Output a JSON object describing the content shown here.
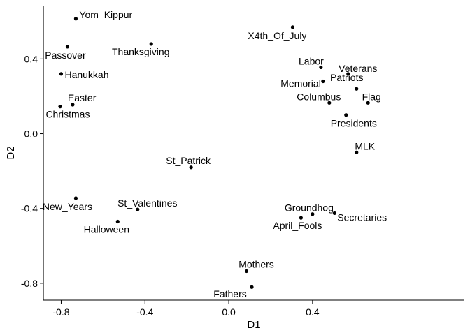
{
  "chart_data": {
    "type": "scatter",
    "xlabel": "D1",
    "ylabel": "D2",
    "xlim": [
      -0.885,
      1.125
    ],
    "ylim": [
      -0.89,
      0.685
    ],
    "x_ticks": [
      -0.8,
      -0.4,
      0.0,
      0.4
    ],
    "x_tick_labels": [
      "-0.8",
      "-0.4",
      "0.0",
      "0.4"
    ],
    "y_ticks": [
      -0.8,
      -0.4,
      0.0,
      0.4
    ],
    "y_tick_labels": [
      "-0.8",
      "-0.4",
      "0.0",
      "0.4"
    ],
    "grid": false,
    "legend": "none",
    "points": [
      {
        "label": "Yom_Kippur",
        "x": -0.73,
        "y": 0.615,
        "anchor": "start",
        "lx": 5,
        "ly": -1
      },
      {
        "label": "X4th_Of_July",
        "x": 0.305,
        "y": 0.57,
        "anchor": "middle",
        "lx": -22,
        "ly": 17
      },
      {
        "label": "Thanksgiving",
        "x": -0.37,
        "y": 0.48,
        "anchor": "middle",
        "lx": -15,
        "ly": 16
      },
      {
        "label": "Passover",
        "x": -0.77,
        "y": 0.465,
        "anchor": "middle",
        "lx": -3,
        "ly": 17
      },
      {
        "label": "Labor",
        "x": 0.44,
        "y": 0.355,
        "anchor": "end",
        "lx": 4,
        "ly": -4
      },
      {
        "label": "Hanukkah",
        "x": -0.8,
        "y": 0.32,
        "anchor": "start",
        "lx": 5,
        "ly": 6
      },
      {
        "label": "Veterans",
        "x": 0.57,
        "y": 0.32,
        "anchor": "middle",
        "lx": 14,
        "ly": -3
      },
      {
        "label": "Memorial",
        "x": 0.45,
        "y": 0.28,
        "anchor": "end",
        "lx": -3,
        "ly": 8
      },
      {
        "label": "Patriots",
        "x": 0.61,
        "y": 0.24,
        "anchor": "middle",
        "lx": -14,
        "ly": -11
      },
      {
        "label": "Flag",
        "x": 0.665,
        "y": 0.165,
        "anchor": "middle",
        "lx": 5,
        "ly": -4
      },
      {
        "label": "Columbus",
        "x": 0.48,
        "y": 0.165,
        "anchor": "middle",
        "lx": -15,
        "ly": -4
      },
      {
        "label": "Easter",
        "x": -0.745,
        "y": 0.155,
        "anchor": "start",
        "lx": -7,
        "ly": -5
      },
      {
        "label": "Christmas",
        "x": -0.805,
        "y": 0.145,
        "anchor": "middle",
        "lx": 11,
        "ly": 16
      },
      {
        "label": "Presidents",
        "x": 0.56,
        "y": 0.1,
        "anchor": "middle",
        "lx": 11,
        "ly": 17
      },
      {
        "label": "MLK",
        "x": 0.61,
        "y": -0.1,
        "anchor": "middle",
        "lx": 12,
        "ly": -4
      },
      {
        "label": "St_Patrick",
        "x": -0.18,
        "y": -0.18,
        "anchor": "middle",
        "lx": -4,
        "ly": -5
      },
      {
        "label": "New_Years",
        "x": -0.73,
        "y": -0.345,
        "anchor": "middle",
        "lx": -12,
        "ly": 17
      },
      {
        "label": "St_Valentines",
        "x": -0.435,
        "y": -0.405,
        "anchor": "middle",
        "lx": 14,
        "ly": -4
      },
      {
        "label": "Groundhog",
        "x": 0.4,
        "y": -0.43,
        "anchor": "middle",
        "lx": -5,
        "ly": -4
      },
      {
        "label": "Secretaries",
        "x": 0.505,
        "y": -0.425,
        "anchor": "start",
        "lx": 4,
        "ly": 11
      },
      {
        "label": "April_Fools",
        "x": 0.345,
        "y": -0.45,
        "anchor": "middle",
        "lx": -5,
        "ly": 16
      },
      {
        "label": "Halloween",
        "x": -0.53,
        "y": -0.47,
        "anchor": "middle",
        "lx": -16,
        "ly": 16
      },
      {
        "label": "Mothers",
        "x": 0.085,
        "y": -0.735,
        "anchor": "middle",
        "lx": 14,
        "ly": -5
      },
      {
        "label": "Fathers",
        "x": 0.11,
        "y": -0.82,
        "anchor": "middle",
        "lx": -31,
        "ly": 15
      }
    ]
  }
}
